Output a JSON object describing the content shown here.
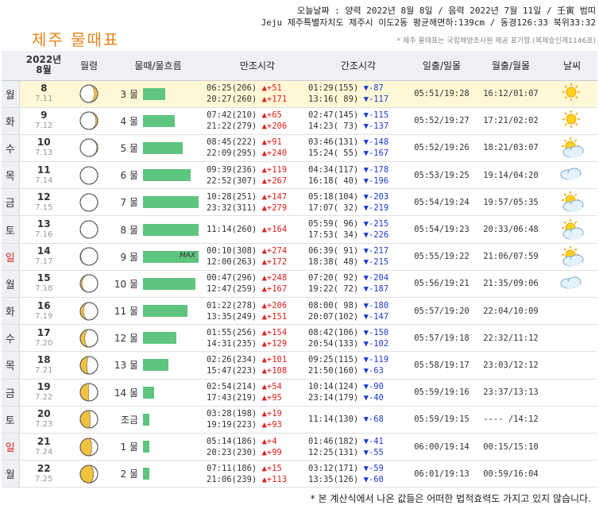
{
  "header": {
    "today_line": "오늘날짜 : 양력 2022년 8월 8일 / 음력 2022년 7월 11일 / 壬寅 범띠",
    "location_line": "Jeju 제주특별자치도 제주시 이도2동 평균해면하:139cm / 동경126:33 북위33:32",
    "title": "제주 물때표",
    "note": "* 제주 물때표는 국립해양조사원 제공 표기함.(복제승인제1146호)"
  },
  "table": {
    "col_headers": {
      "date_year": "2022년",
      "date_month": "8월",
      "moon": "월령",
      "tide": "물때/물흐름",
      "high": "만조시각",
      "low": "간조시각",
      "sun": "일출/일몰",
      "moonrise": "월출/월몰",
      "weather": "날씨"
    },
    "rows": [
      {
        "dow": "월",
        "sun_day": false,
        "today": true,
        "date": "8",
        "lunar": "7.11",
        "moon_phase": 0.36,
        "tide_name": "3 물",
        "flow": 0.28,
        "max": "",
        "high": [
          {
            "t": "06:25",
            "h": "206",
            "d": "+51",
            "dir": "▲"
          },
          {
            "t": "20:27",
            "h": "260",
            "d": "+171",
            "dir": "▲"
          }
        ],
        "low": [
          {
            "t": "01:29",
            "h": "155",
            "d": "-87",
            "dir": "▼"
          },
          {
            "t": "13:16",
            "h": " 89",
            "d": "-117",
            "dir": "▼"
          }
        ],
        "sun": "05:51/19:28",
        "moonrise": "16:12/01:07",
        "weather": "sunny"
      },
      {
        "dow": "화",
        "sun_day": false,
        "today": false,
        "date": "9",
        "lunar": "7.12",
        "moon_phase": 0.4,
        "tide_name": "4 물",
        "flow": 0.4,
        "max": "",
        "high": [
          {
            "t": "07:42",
            "h": "210",
            "d": "+65",
            "dir": "▲"
          },
          {
            "t": "21:22",
            "h": "279",
            "d": "+206",
            "dir": "▲"
          }
        ],
        "low": [
          {
            "t": "02:47",
            "h": "145",
            "d": "-115",
            "dir": "▼"
          },
          {
            "t": "14:23",
            "h": " 73",
            "d": "-137",
            "dir": "▼"
          }
        ],
        "sun": "05:52/19:27",
        "moonrise": "17:21/02:02",
        "weather": "sunny"
      },
      {
        "dow": "수",
        "sun_day": false,
        "today": false,
        "date": "10",
        "lunar": "7.13",
        "moon_phase": 0.43,
        "tide_name": "5 물",
        "flow": 0.5,
        "max": "",
        "high": [
          {
            "t": "08:45",
            "h": "222",
            "d": "+91",
            "dir": "▲"
          },
          {
            "t": "22:09",
            "h": "295",
            "d": "+240",
            "dir": "▲"
          }
        ],
        "low": [
          {
            "t": "03:46",
            "h": "131",
            "d": "-148",
            "dir": "▼"
          },
          {
            "t": "15:24",
            "h": " 55",
            "d": "-167",
            "dir": "▼"
          }
        ],
        "sun": "05:52/19:26",
        "moonrise": "18:21/03:07",
        "weather": "partly-cloudy"
      },
      {
        "dow": "목",
        "sun_day": false,
        "today": false,
        "date": "11",
        "lunar": "7.14",
        "moon_phase": 0.47,
        "tide_name": "6 물",
        "flow": 0.6,
        "max": "",
        "high": [
          {
            "t": "09:39",
            "h": "236",
            "d": "+119",
            "dir": "▲"
          },
          {
            "t": "22:52",
            "h": "307",
            "d": "+267",
            "dir": "▲"
          }
        ],
        "low": [
          {
            "t": "04:34",
            "h": "117",
            "d": "-178",
            "dir": "▼"
          },
          {
            "t": "16:18",
            "h": " 40",
            "d": "-196",
            "dir": "▼"
          }
        ],
        "sun": "05:53/19:25",
        "moonrise": "19:14/04:20",
        "weather": "cloudy"
      },
      {
        "dow": "금",
        "sun_day": false,
        "today": false,
        "date": "12",
        "lunar": "7.15",
        "moon_phase": 0.5,
        "tide_name": "7 물",
        "flow": 0.7,
        "max": "",
        "high": [
          {
            "t": "10:28",
            "h": "251",
            "d": "+147",
            "dir": "▲"
          },
          {
            "t": "23:32",
            "h": "311",
            "d": "+279",
            "dir": "▲"
          }
        ],
        "low": [
          {
            "t": "05:18",
            "h": "104",
            "d": "-203",
            "dir": "▼"
          },
          {
            "t": "17:07",
            "h": " 32",
            "d": "-219",
            "dir": "▼"
          }
        ],
        "sun": "05:54/19:24",
        "moonrise": "19:57/05:35",
        "weather": "partly-cloudy"
      },
      {
        "dow": "토",
        "sun_day": false,
        "today": false,
        "date": "13",
        "lunar": "7.16",
        "moon_phase": 0.53,
        "tide_name": "8 물",
        "flow": 0.7,
        "max": "",
        "high": [
          {
            "t": "11:14",
            "h": "260",
            "d": "+164",
            "dir": "▲"
          }
        ],
        "low": [
          {
            "t": "05:59",
            "h": " 96",
            "d": "-215",
            "dir": "▼"
          },
          {
            "t": "17:53",
            "h": " 34",
            "d": "-226",
            "dir": "▼"
          }
        ],
        "sun": "05:54/19:23",
        "moonrise": "20:33/06:48",
        "weather": "partly-cloudy"
      },
      {
        "dow": "일",
        "sun_day": true,
        "today": false,
        "date": "14",
        "lunar": "7.17",
        "moon_phase": 0.56,
        "tide_name": "9 물",
        "flow": 0.7,
        "max": "MAX",
        "high": [
          {
            "t": "00:10",
            "h": "308",
            "d": "+274",
            "dir": "▲"
          },
          {
            "t": "12:00",
            "h": "263",
            "d": "+172",
            "dir": "▲"
          }
        ],
        "low": [
          {
            "t": "06:39",
            "h": " 91",
            "d": "-217",
            "dir": "▼"
          },
          {
            "t": "18:38",
            "h": " 48",
            "d": "-215",
            "dir": "▼"
          }
        ],
        "sun": "05:55/19:22",
        "moonrise": "21:06/07:59",
        "weather": "partly-cloudy"
      },
      {
        "dow": "월",
        "sun_day": false,
        "today": false,
        "date": "15",
        "lunar": "7.18",
        "moon_phase": 0.6,
        "tide_name": "10 물",
        "flow": 0.66,
        "max": "",
        "high": [
          {
            "t": "00:47",
            "h": "296",
            "d": "+248",
            "dir": "▲"
          },
          {
            "t": "12:47",
            "h": "259",
            "d": "+167",
            "dir": "▲"
          }
        ],
        "low": [
          {
            "t": "07:20",
            "h": " 92",
            "d": "-204",
            "dir": "▼"
          },
          {
            "t": "19:22",
            "h": " 72",
            "d": "-187",
            "dir": "▼"
          }
        ],
        "sun": "05:56/19:21",
        "moonrise": "21:35/09:06",
        "weather": "cloudy"
      },
      {
        "dow": "화",
        "sun_day": false,
        "today": false,
        "date": "16",
        "lunar": "7.19",
        "moon_phase": 0.64,
        "tide_name": "11 물",
        "flow": 0.56,
        "max": "",
        "high": [
          {
            "t": "01:22",
            "h": "278",
            "d": "+206",
            "dir": "▲"
          },
          {
            "t": "13:35",
            "h": "249",
            "d": "+151",
            "dir": "▲"
          }
        ],
        "low": [
          {
            "t": "08:00",
            "h": " 98",
            "d": "-180",
            "dir": "▼"
          },
          {
            "t": "20:07",
            "h": "102",
            "d": "-147",
            "dir": "▼"
          }
        ],
        "sun": "05:57/19:20",
        "moonrise": "22:04/10:09",
        "weather": ""
      },
      {
        "dow": "수",
        "sun_day": false,
        "today": false,
        "date": "17",
        "lunar": "7.20",
        "moon_phase": 0.67,
        "tide_name": "12 물",
        "flow": 0.42,
        "max": "",
        "high": [
          {
            "t": "01:55",
            "h": "256",
            "d": "+154",
            "dir": "▲"
          },
          {
            "t": "14:31",
            "h": "235",
            "d": "+129",
            "dir": "▲"
          }
        ],
        "low": [
          {
            "t": "08:42",
            "h": "106",
            "d": "-150",
            "dir": "▼"
          },
          {
            "t": "20:54",
            "h": "133",
            "d": "-102",
            "dir": "▼"
          }
        ],
        "sun": "05:57/19:18",
        "moonrise": "22:32/11:12",
        "weather": ""
      },
      {
        "dow": "목",
        "sun_day": false,
        "today": false,
        "date": "18",
        "lunar": "7.21",
        "moon_phase": 0.71,
        "tide_name": "13 물",
        "flow": 0.32,
        "max": "",
        "high": [
          {
            "t": "02:26",
            "h": "234",
            "d": "+101",
            "dir": "▲"
          },
          {
            "t": "15:47",
            "h": "223",
            "d": "+108",
            "dir": "▲"
          }
        ],
        "low": [
          {
            "t": "09:25",
            "h": "115",
            "d": "-119",
            "dir": "▼"
          },
          {
            "t": "21:50",
            "h": "160",
            "d": "-63",
            "dir": "▼"
          }
        ],
        "sun": "05:58/19:17",
        "moonrise": "23:03/12:12",
        "weather": ""
      },
      {
        "dow": "금",
        "sun_day": false,
        "today": false,
        "date": "19",
        "lunar": "7.22",
        "moon_phase": 0.74,
        "tide_name": "14 물",
        "flow": 0.14,
        "max": "",
        "high": [
          {
            "t": "02:54",
            "h": "214",
            "d": "+54",
            "dir": "▲"
          },
          {
            "t": "17:43",
            "h": "219",
            "d": "+95",
            "dir": "▲"
          }
        ],
        "low": [
          {
            "t": "10:14",
            "h": "124",
            "d": "-90",
            "dir": "▼"
          },
          {
            "t": "23:14",
            "h": "179",
            "d": "-40",
            "dir": "▼"
          }
        ],
        "sun": "05:59/19:16",
        "moonrise": "23:37/13:13",
        "weather": ""
      },
      {
        "dow": "토",
        "sun_day": false,
        "today": false,
        "date": "20",
        "lunar": "7.23",
        "moon_phase": 0.77,
        "tide_name": "조금",
        "flow": 0.08,
        "max": "",
        "high": [
          {
            "t": "03:28",
            "h": "198",
            "d": "+19",
            "dir": "▲"
          },
          {
            "t": "19:19",
            "h": "223",
            "d": "+93",
            "dir": "▲"
          }
        ],
        "low": [
          {
            "t": "11:14",
            "h": "130",
            "d": "-68",
            "dir": "▼"
          }
        ],
        "sun": "05:59/19:15",
        "moonrise": "---- /14:12",
        "weather": ""
      },
      {
        "dow": "일",
        "sun_day": true,
        "today": false,
        "date": "21",
        "lunar": "7.24",
        "moon_phase": 0.8,
        "tide_name": "1 물",
        "flow": 0.08,
        "max": "",
        "high": [
          {
            "t": "05:14",
            "h": "186",
            "d": "+4",
            "dir": "▲"
          },
          {
            "t": "20:23",
            "h": "230",
            "d": "+99",
            "dir": "▲"
          }
        ],
        "low": [
          {
            "t": "01:46",
            "h": "182",
            "d": "-41",
            "dir": "▼"
          },
          {
            "t": "12:25",
            "h": "131",
            "d": "-55",
            "dir": "▼"
          }
        ],
        "sun": "06:00/19:14",
        "moonrise": "00:15/15:10",
        "weather": ""
      },
      {
        "dow": "월",
        "sun_day": false,
        "today": false,
        "date": "22",
        "lunar": "7.25",
        "moon_phase": 0.84,
        "tide_name": "2 물",
        "flow": 0.08,
        "max": "",
        "high": [
          {
            "t": "07:11",
            "h": "186",
            "d": "+15",
            "dir": "▲"
          },
          {
            "t": "21:06",
            "h": "239",
            "d": "+113",
            "dir": "▲"
          }
        ],
        "low": [
          {
            "t": "03:12",
            "h": "171",
            "d": "-59",
            "dir": "▼"
          },
          {
            "t": "13:35",
            "h": "126",
            "d": "-60",
            "dir": "▼"
          }
        ],
        "sun": "06:01/19:13",
        "moonrise": "00:59/16:04",
        "weather": ""
      }
    ]
  },
  "footer": "* 본 계산식에서 나온 값들은 어떠한 법적효력도 가지고 있지 않습니다.",
  "colors": {
    "title": "#e8851e",
    "rise": "#e0201c",
    "fall": "#1a3bd6",
    "bar": "#5ec57e",
    "sunday": "#e0201c",
    "today_bg": "#fff8d6"
  }
}
